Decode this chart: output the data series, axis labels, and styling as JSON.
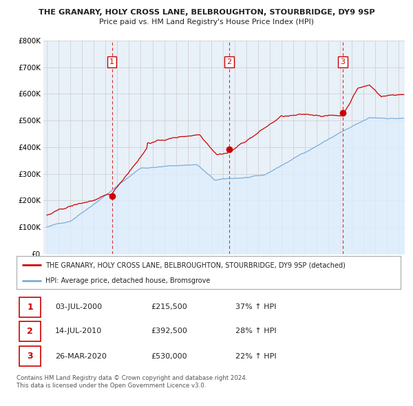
{
  "title1": "THE GRANARY, HOLY CROSS LANE, BELBROUGHTON, STOURBRIDGE, DY9 9SP",
  "title2": "Price paid vs. HM Land Registry's House Price Index (HPI)",
  "red_label": "THE GRANARY, HOLY CROSS LANE, BELBROUGHTON, STOURBRIDGE, DY9 9SP (detached)",
  "blue_label": "HPI: Average price, detached house, Bromsgrove",
  "transactions": [
    {
      "num": 1,
      "date": "03-JUL-2000",
      "price": 215500,
      "pct": "37%",
      "dir": "↑",
      "x": 2000.54
    },
    {
      "num": 2,
      "date": "14-JUL-2010",
      "price": 392500,
      "pct": "28%",
      "dir": "↑",
      "x": 2010.54
    },
    {
      "num": 3,
      "date": "26-MAR-2020",
      "price": 530000,
      "pct": "22%",
      "dir": "↑",
      "x": 2020.23
    }
  ],
  "footer1": "Contains HM Land Registry data © Crown copyright and database right 2024.",
  "footer2": "This data is licensed under the Open Government Licence v3.0.",
  "ylim": [
    0,
    800000
  ],
  "yticks": [
    0,
    100000,
    200000,
    300000,
    400000,
    500000,
    600000,
    700000,
    800000
  ],
  "xlim": [
    1994.7,
    2025.5
  ],
  "xticks": [
    1995,
    1996,
    1997,
    1998,
    1999,
    2000,
    2001,
    2002,
    2003,
    2004,
    2005,
    2006,
    2007,
    2008,
    2009,
    2010,
    2011,
    2012,
    2013,
    2014,
    2015,
    2016,
    2017,
    2018,
    2019,
    2020,
    2021,
    2022,
    2023,
    2024,
    2025
  ],
  "red_color": "#cc0000",
  "blue_color": "#7aaddc",
  "fill_color": "#ddeeff",
  "vline_color": "#cc0000",
  "grid_color": "#cccccc",
  "bg_color": "#ffffff",
  "plot_bg": "#e8f0f8"
}
